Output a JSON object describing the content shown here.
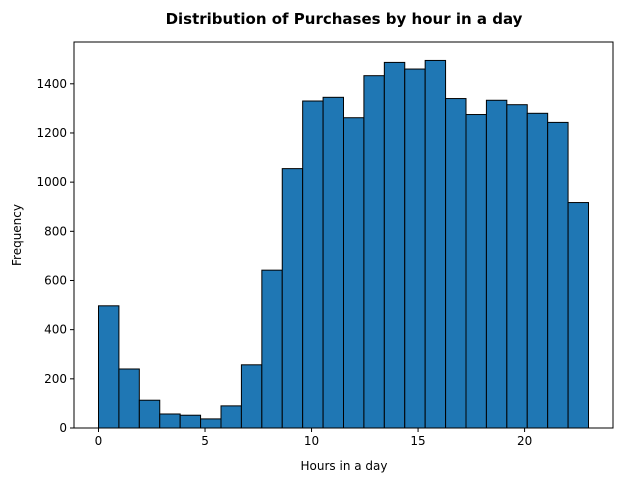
{
  "chart_data": {
    "type": "bar",
    "title": "Distribution of Purchases by hour in a day",
    "xlabel": "Hours in a day",
    "ylabel": "Frequency",
    "xlim": [
      -1.15,
      24.15
    ],
    "ylim": [
      0,
      1570
    ],
    "grid": false,
    "bin_width": 0.958,
    "bins": [
      {
        "start": 0.0,
        "value": 497
      },
      {
        "start": 0.958,
        "value": 240
      },
      {
        "start": 1.917,
        "value": 113
      },
      {
        "start": 2.875,
        "value": 57
      },
      {
        "start": 3.833,
        "value": 52
      },
      {
        "start": 4.792,
        "value": 37
      },
      {
        "start": 5.75,
        "value": 90
      },
      {
        "start": 6.708,
        "value": 257
      },
      {
        "start": 7.667,
        "value": 642
      },
      {
        "start": 8.625,
        "value": 1055
      },
      {
        "start": 9.583,
        "value": 1330
      },
      {
        "start": 10.542,
        "value": 1345
      },
      {
        "start": 11.5,
        "value": 1262
      },
      {
        "start": 12.458,
        "value": 1433
      },
      {
        "start": 13.417,
        "value": 1487
      },
      {
        "start": 14.375,
        "value": 1460
      },
      {
        "start": 15.333,
        "value": 1495
      },
      {
        "start": 16.292,
        "value": 1340
      },
      {
        "start": 17.25,
        "value": 1275
      },
      {
        "start": 18.208,
        "value": 1333
      },
      {
        "start": 19.167,
        "value": 1315
      },
      {
        "start": 20.125,
        "value": 1280
      },
      {
        "start": 21.083,
        "value": 1243
      },
      {
        "start": 22.042,
        "value": 917
      }
    ],
    "x_ticks": [
      0,
      5,
      10,
      15,
      20
    ],
    "y_ticks": [
      0,
      200,
      400,
      600,
      800,
      1000,
      1200,
      1400
    ],
    "colors": {
      "bar_fill": "#1f77b4",
      "bar_edge": "#000000"
    }
  }
}
